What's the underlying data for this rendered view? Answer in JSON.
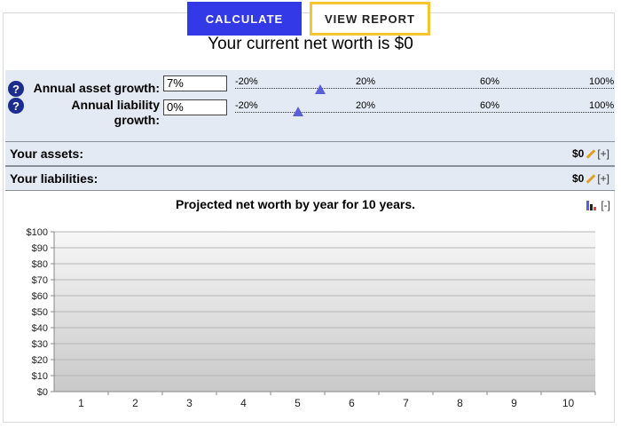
{
  "buttons": {
    "calculate": "CALCULATE",
    "view_report": "VIEW REPORT"
  },
  "net_worth_text": "Your current net worth is $0",
  "growth": {
    "help": "?",
    "asset_label": "Annual asset growth:",
    "asset_value": "7%",
    "asset_percent": 7,
    "liability_label_1": "Annual liability",
    "liability_label_2": "growth:",
    "liability_value": "0%",
    "liability_percent": 0,
    "scale_ticks": [
      "-20%",
      "20%",
      "60%",
      "100%"
    ]
  },
  "assets": {
    "label": "Your assets:",
    "value": "$0",
    "add": "[+]",
    "edit_icon": "pencil-icon"
  },
  "liabilities": {
    "label": "Your liabilities:",
    "value": "$0",
    "add": "[+]",
    "edit_icon": "pencil-icon"
  },
  "chart_header": {
    "title": "Projected net worth by year for 10 years.",
    "collapse": "[-]",
    "type_icon": "bar-chart-icon"
  },
  "chart_data": {
    "type": "bar",
    "title": "Projected net worth by year for 10 years.",
    "categories": [
      "1",
      "2",
      "3",
      "4",
      "5",
      "6",
      "7",
      "8",
      "9",
      "10"
    ],
    "values": [
      0,
      0,
      0,
      0,
      0,
      0,
      0,
      0,
      0,
      0
    ],
    "y_ticks": [
      "$0",
      "$10",
      "$20",
      "$30",
      "$40",
      "$50",
      "$60",
      "$70",
      "$80",
      "$90",
      "$100"
    ],
    "ylim": [
      0,
      100
    ],
    "grid": true
  },
  "colors": {
    "primary": "#3339e6",
    "highlight": "#f2c531",
    "panel": "#e3eaf3",
    "marker": "#5a5ed8"
  }
}
